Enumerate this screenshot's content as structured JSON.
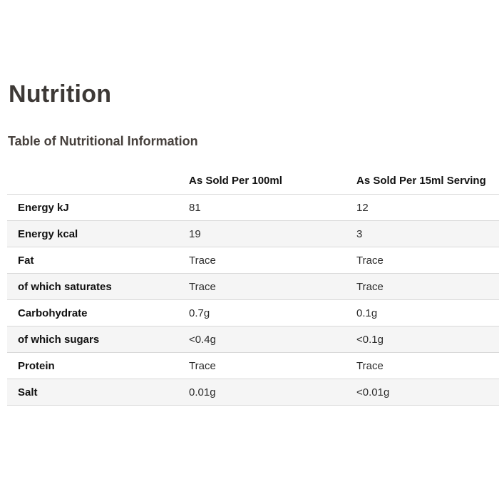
{
  "page": {
    "title": "Nutrition",
    "subtitle": "Table of Nutritional Information"
  },
  "table": {
    "columns": [
      "",
      "As Sold Per 100ml",
      "As Sold Per 15ml Serving"
    ],
    "rows": [
      {
        "label": "Energy kJ",
        "per_100ml": "81",
        "per_15ml": "12"
      },
      {
        "label": "Energy kcal",
        "per_100ml": "19",
        "per_15ml": "3"
      },
      {
        "label": "Fat",
        "per_100ml": "Trace",
        "per_15ml": "Trace"
      },
      {
        "label": "of which saturates",
        "per_100ml": "Trace",
        "per_15ml": "Trace"
      },
      {
        "label": "Carbohydrate",
        "per_100ml": "0.7g",
        "per_15ml": "0.1g"
      },
      {
        "label": "of which sugars",
        "per_100ml": "<0.4g",
        "per_15ml": "<0.1g"
      },
      {
        "label": "Protein",
        "per_100ml": "Trace",
        "per_15ml": "Trace"
      },
      {
        "label": "Salt",
        "per_100ml": "0.01g",
        "per_15ml": "<0.01g"
      }
    ]
  },
  "colors": {
    "heading_text": "#3d3936",
    "body_text": "#2b2b2b",
    "row_alt_background": "#f5f5f5",
    "border": "#d9d9d9",
    "page_background": "#ffffff"
  }
}
